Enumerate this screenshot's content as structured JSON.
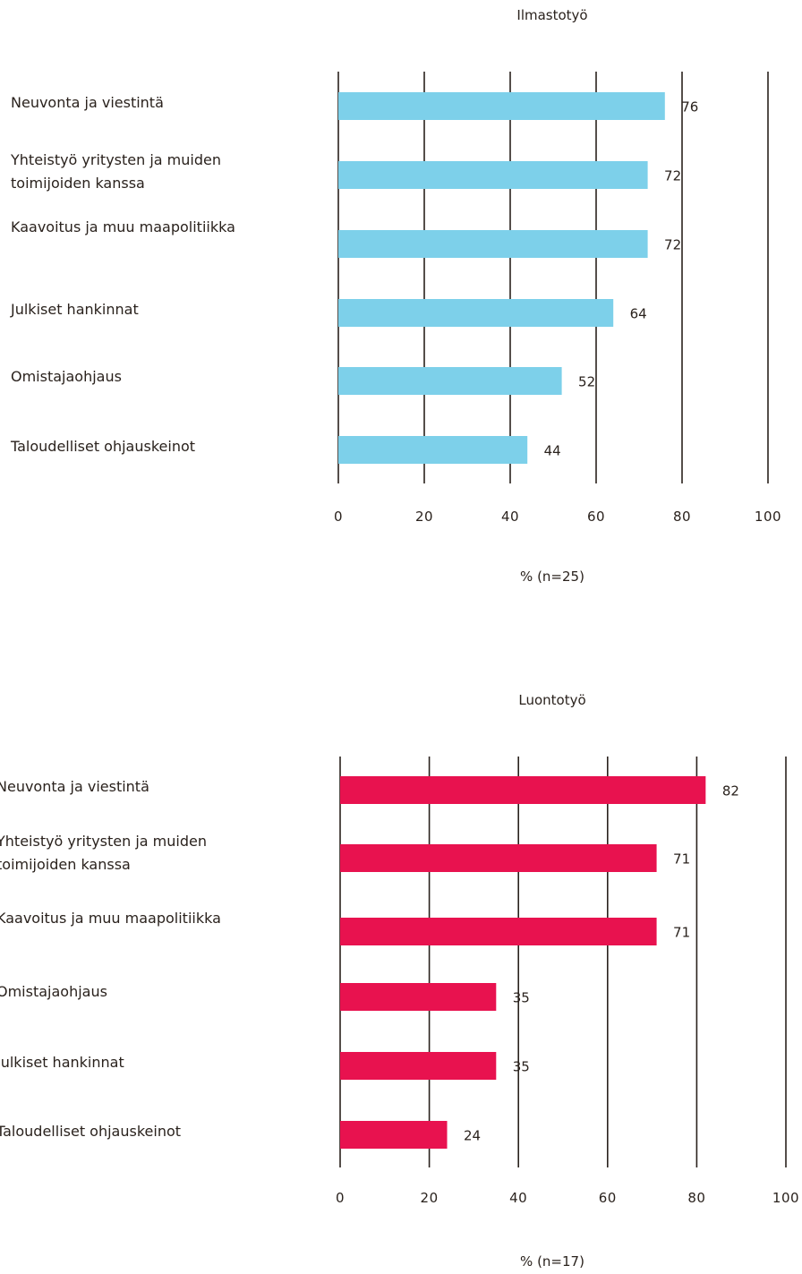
{
  "chart_data": [
    {
      "type": "bar",
      "orientation": "horizontal",
      "title": "Ilmastotyö",
      "xlabel": "% (n=25)",
      "ylabel": "",
      "xlim": [
        0,
        100
      ],
      "ticks": [
        "0",
        "20",
        "40",
        "60",
        "80",
        "100"
      ],
      "color": "#7dd0ea",
      "grid": true,
      "categories": [
        [
          "Neuvonta ja viestintä"
        ],
        [
          "Yhteistyö yritysten ja muiden",
          "toimijoiden kanssa"
        ],
        [
          "Kaavoitus ja muu maapolitiikka"
        ],
        [
          "Julkiset hankinnat"
        ],
        [
          "Omistajaohjaus"
        ],
        [
          "Taloudelliset ohjauskeinot"
        ]
      ],
      "values": [
        76,
        72,
        72,
        64,
        52,
        44
      ]
    },
    {
      "type": "bar",
      "orientation": "horizontal",
      "title": "Luontotyö",
      "xlabel": "% (n=17)",
      "ylabel": "",
      "xlim": [
        0,
        100
      ],
      "ticks": [
        "0",
        "20",
        "40",
        "60",
        "80",
        "100"
      ],
      "color": "#e8124f",
      "grid": true,
      "categories": [
        [
          "Neuvonta ja viestintä"
        ],
        [
          "Yhteistyö yritysten ja muiden",
          "toimijoiden kanssa"
        ],
        [
          "Kaavoitus ja muu maapolitiikka"
        ],
        [
          "Omistajaohjaus"
        ],
        [
          "Julkiset hankinnat"
        ],
        [
          "Taloudelliset ohjauskeinot"
        ]
      ],
      "values": [
        82,
        71,
        71,
        35,
        35,
        24
      ]
    }
  ]
}
